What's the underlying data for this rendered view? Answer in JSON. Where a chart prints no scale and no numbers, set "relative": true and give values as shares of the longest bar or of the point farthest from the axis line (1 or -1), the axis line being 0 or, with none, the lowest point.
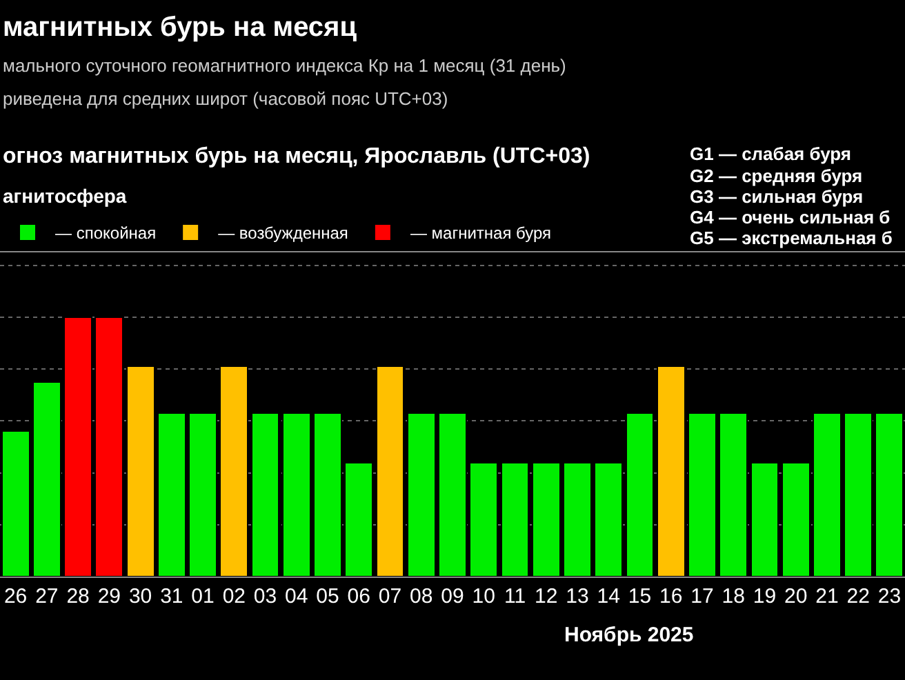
{
  "chart_data": {
    "type": "bar",
    "title": "магнитных бурь на месяц",
    "subtitle": "мального суточного геомагнитного индекса Кр на 1 месяц (31 день)\nриведена для средних широт (часовой пояс UTC+03)",
    "annotations": [
      "огноз магнитных бурь на месяц, Ярославль (UTC+03)",
      "G1 — слабая буря",
      "G2 — средняя буря",
      "G3 — сильная буря",
      "G4 — очень сильная б",
      "G5 — экстремальная б"
    ],
    "xlabel": "Ноябрь 2025",
    "legend_title": "агнитосфера",
    "categories": [
      "26",
      "27",
      "28",
      "29",
      "30",
      "31",
      "01",
      "02",
      "03",
      "04",
      "05",
      "06",
      "07",
      "08",
      "09",
      "10",
      "11",
      "12",
      "13",
      "14",
      "15",
      "16",
      "17",
      "18",
      "19",
      "20",
      "21",
      "22",
      "23"
    ],
    "relative": true,
    "stacked": true,
    "series": [
      {
        "name": "— спокойная",
        "color": "#00ee00",
        "values": [
          0.56,
          0.75,
          null,
          null,
          null,
          0.63,
          0.63,
          null,
          0.63,
          0.63,
          0.63,
          0.44,
          null,
          0.63,
          0.63,
          0.44,
          0.44,
          0.44,
          0.44,
          0.44,
          0.63,
          null,
          0.63,
          0.63,
          0.44,
          0.44,
          0.63,
          0.63,
          0.63
        ]
      },
      {
        "name": "— возбужденная",
        "color": "#ffc000",
        "values": [
          null,
          null,
          null,
          null,
          0.81,
          null,
          null,
          0.81,
          null,
          null,
          null,
          null,
          0.81,
          null,
          null,
          null,
          null,
          null,
          null,
          null,
          null,
          0.81,
          null,
          null,
          null,
          null,
          null,
          null,
          null
        ]
      },
      {
        "name": "— магнитная буря",
        "color": "#ff0000",
        "values": [
          null,
          null,
          1,
          1,
          null,
          null,
          null,
          null,
          null,
          null,
          null,
          null,
          null,
          null,
          null,
          null,
          null,
          null,
          null,
          null,
          null,
          null,
          null,
          null,
          null,
          null,
          null,
          null,
          null
        ]
      }
    ],
    "grid": "y",
    "legend": "top left"
  }
}
